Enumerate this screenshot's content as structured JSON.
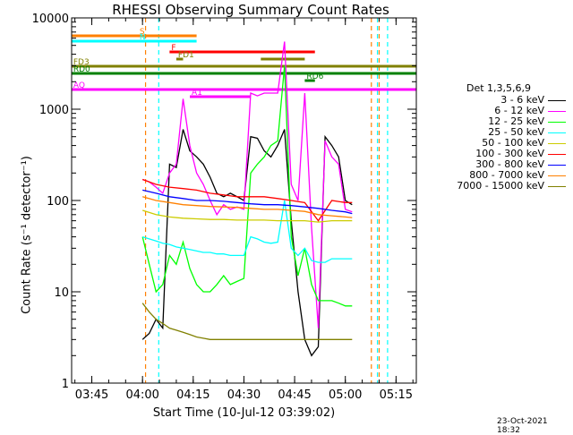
{
  "chart_data": {
    "type": "line",
    "title": "RHESSI Observing Summary Count Rates",
    "xlabel": "Start Time (10-Jul-12 03:39:02)",
    "ylabel": "Count Rate (s⁻¹ detector⁻¹)",
    "x_ticks": [
      "03:45",
      "04:00",
      "04:15",
      "04:30",
      "04:45",
      "05:00",
      "05:15"
    ],
    "x_tick_minutes": [
      225,
      240,
      255,
      270,
      285,
      300,
      315
    ],
    "xlim_minutes": [
      219.03,
      321.0
    ],
    "y_log": true,
    "ylim": [
      1,
      10000
    ],
    "y_ticks": [
      "1",
      "10",
      "100",
      "1000",
      "10000"
    ],
    "y_tick_values": [
      1,
      10,
      100,
      1000,
      10000
    ],
    "legend_title": "Det 1,3,5,6,9",
    "legend_placement": "right",
    "series": [
      {
        "name": "3 - 6 keV",
        "color": "#000000",
        "x": [
          240,
          242,
          244,
          246,
          248,
          250,
          252,
          254,
          256,
          258,
          260,
          262,
          264,
          266,
          268,
          270,
          272,
          274,
          276,
          278,
          280,
          282,
          284,
          286,
          288,
          290,
          292,
          294,
          296,
          298,
          300,
          302
        ],
        "y": [
          3,
          3.5,
          5,
          4,
          250,
          230,
          600,
          350,
          300,
          250,
          180,
          120,
          110,
          120,
          110,
          100,
          500,
          480,
          350,
          300,
          400,
          600,
          60,
          10,
          3,
          2,
          2.5,
          500,
          400,
          300,
          100,
          90
        ]
      },
      {
        "name": "6 - 12 keV",
        "color": "#ff00ff",
        "x": [
          240,
          242,
          244,
          246,
          248,
          250,
          252,
          254,
          256,
          258,
          260,
          262,
          264,
          266,
          268,
          270,
          272,
          274,
          276,
          278,
          280,
          282,
          284,
          286,
          288,
          290,
          292,
          294,
          296,
          298,
          300,
          302
        ],
        "y": [
          170,
          160,
          140,
          120,
          200,
          250,
          1300,
          400,
          200,
          150,
          100,
          70,
          90,
          80,
          85,
          80,
          1500,
          1400,
          1500,
          1500,
          1500,
          5500,
          150,
          100,
          1500,
          50,
          4,
          450,
          300,
          250,
          80,
          75
        ]
      },
      {
        "name": "12 - 25 keV",
        "color": "#00ff00",
        "x": [
          240,
          242,
          244,
          246,
          248,
          250,
          252,
          254,
          256,
          258,
          260,
          262,
          264,
          266,
          268,
          270,
          272,
          274,
          276,
          278,
          280,
          282,
          284,
          286,
          288,
          290,
          292,
          294,
          296,
          298,
          300,
          302
        ],
        "y": [
          40,
          20,
          10,
          12,
          25,
          20,
          35,
          18,
          12,
          10,
          10,
          12,
          15,
          12,
          13,
          14,
          200,
          250,
          300,
          400,
          450,
          3000,
          40,
          15,
          30,
          12,
          8,
          8,
          8,
          7.5,
          7,
          7
        ]
      },
      {
        "name": "25 - 50 keV",
        "color": "#00ffff",
        "x": [
          240,
          242,
          244,
          246,
          248,
          250,
          252,
          254,
          256,
          258,
          260,
          262,
          264,
          266,
          268,
          270,
          272,
          274,
          276,
          278,
          280,
          282,
          284,
          286,
          288,
          290,
          292,
          294,
          296,
          298,
          300,
          302
        ],
        "y": [
          40,
          38,
          36,
          34,
          33,
          31,
          30,
          29,
          28,
          27,
          27,
          26,
          26,
          25,
          25,
          25,
          40,
          38,
          35,
          34,
          35,
          100,
          30,
          25,
          30,
          22,
          21,
          21,
          23,
          23,
          23,
          23
        ]
      },
      {
        "name": "50 - 100 keV",
        "color": "#cccc00",
        "x": [
          240,
          244,
          248,
          252,
          256,
          260,
          264,
          268,
          272,
          276,
          280,
          284,
          288,
          292,
          296,
          300,
          302
        ],
        "y": [
          78,
          70,
          66,
          64,
          63,
          62,
          62,
          61,
          61,
          61,
          60,
          60,
          60,
          58,
          60,
          60,
          60
        ]
      },
      {
        "name": "100 - 300 keV",
        "color": "#ff0000",
        "x": [
          240,
          244,
          248,
          252,
          256,
          260,
          264,
          268,
          272,
          276,
          280,
          284,
          288,
          292,
          296,
          300,
          302
        ],
        "y": [
          170,
          150,
          140,
          135,
          130,
          120,
          115,
          110,
          110,
          110,
          105,
          100,
          95,
          60,
          100,
          95,
          95
        ]
      },
      {
        "name": "300 - 800 keV",
        "color": "#0000ff",
        "x": [
          240,
          244,
          248,
          252,
          256,
          260,
          264,
          268,
          272,
          276,
          280,
          284,
          288,
          292,
          296,
          300,
          302
        ],
        "y": [
          130,
          120,
          110,
          105,
          100,
          100,
          98,
          95,
          92,
          90,
          90,
          88,
          85,
          82,
          78,
          75,
          72
        ]
      },
      {
        "name": "800 - 7000 keV",
        "color": "#ff8000",
        "x": [
          240,
          244,
          248,
          252,
          256,
          260,
          264,
          268,
          272,
          276,
          280,
          284,
          288,
          292,
          296,
          300,
          302
        ],
        "y": [
          110,
          100,
          95,
          90,
          88,
          86,
          85,
          84,
          82,
          80,
          80,
          78,
          76,
          70,
          68,
          66,
          65
        ]
      },
      {
        "name": "7000 - 15000 keV",
        "color": "#808000",
        "x": [
          240,
          242,
          244,
          246,
          248,
          250,
          252,
          254,
          256,
          258,
          260,
          262,
          264,
          266,
          268,
          270,
          272,
          274,
          276,
          278,
          280,
          282,
          284,
          286,
          288,
          290,
          292,
          294,
          296,
          298,
          300,
          302
        ],
        "y": [
          7.5,
          6,
          5,
          4.5,
          4,
          3.8,
          3.6,
          3.4,
          3.2,
          3.1,
          3,
          3,
          3,
          3,
          3,
          3,
          3,
          3,
          3,
          3,
          3,
          3,
          3,
          3,
          3,
          3,
          3,
          3,
          3,
          3,
          3,
          3
        ]
      }
    ],
    "flag_bars": [
      {
        "label": "S",
        "color": "#ff8000",
        "segments": [
          [
            219,
            256
          ]
        ]
      },
      {
        "label": "N",
        "color": "#00ffff",
        "segments": [
          [
            219,
            256
          ]
        ]
      },
      {
        "label": "F",
        "color": "#ff0000",
        "segments": [
          [
            248,
            291
          ]
        ]
      },
      {
        "label": "FD1",
        "color": "#808000",
        "segments": [
          [
            250,
            252
          ],
          [
            275,
            288
          ]
        ]
      },
      {
        "label": "FD3",
        "color": "#808000",
        "segments": [
          [
            219,
            321
          ]
        ]
      },
      {
        "label": "RD0",
        "color": "#008000",
        "segments": [
          [
            219,
            321
          ]
        ]
      },
      {
        "label": "RD6",
        "color": "#008000",
        "segments": [
          [
            288,
            291
          ]
        ]
      },
      {
        "label": "AQ",
        "color": "#ff00ff",
        "segments": [
          [
            219,
            321
          ]
        ]
      },
      {
        "label": "A1",
        "color": "#ff00ff",
        "segments": [
          [
            254,
            272
          ]
        ]
      }
    ],
    "vertical_markers": [
      {
        "color": "#00ffff",
        "x": [
          244.8,
          309.5,
          312.5
        ]
      },
      {
        "color": "#ff8000",
        "x": [
          240.9,
          307.7,
          310
        ]
      }
    ]
  },
  "footer": {
    "date_stamp": "23-Oct-2021 18:32"
  }
}
